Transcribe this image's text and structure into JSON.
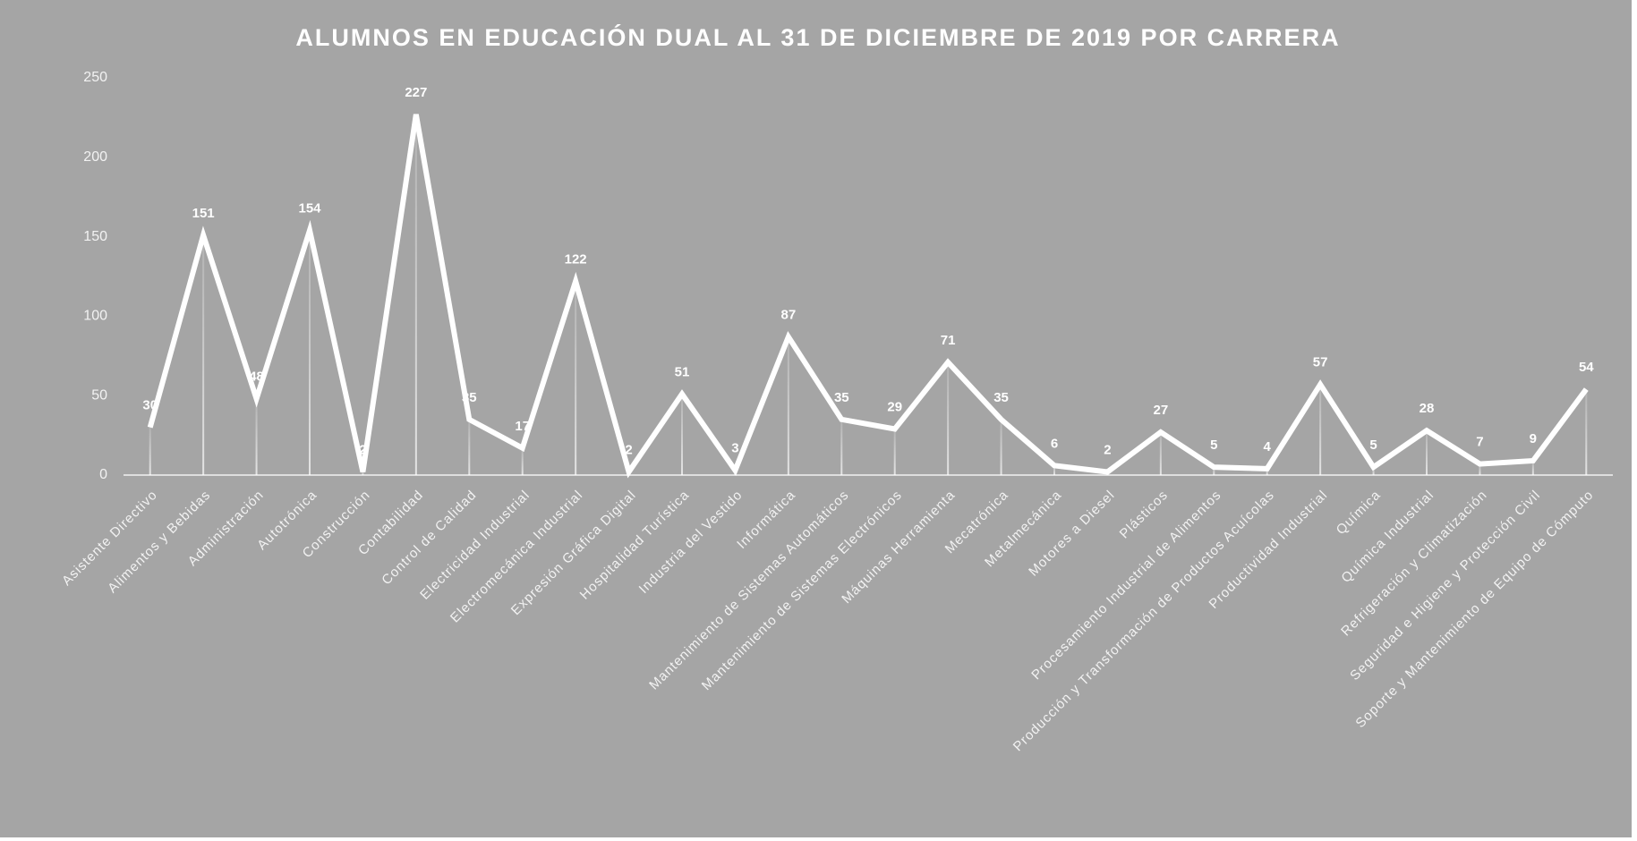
{
  "chart_data": {
    "type": "line",
    "title": "ALUMNOS EN EDUCACIÓN DUAL AL 31 DE DICIEMBRE DE 2019 POR CARRERA",
    "categories": [
      "Asistente Directivo",
      "Alimentos y Bebidas",
      "Administración",
      "Autotrónica",
      "Construcción",
      "Contabilidad",
      "Control de Calidad",
      "Electricidad Industrial",
      "Electromecánica Industrial",
      "Expresión Gráfica Digital",
      "Hospitalidad Turística",
      "Industria del Vestido",
      "Informática",
      "Mantenimiento de Sistemas Automáticos",
      "Mantenimiento de Sistemas Electrónicos",
      "Máquinas Herramienta",
      "Mecatrónica",
      "Metalmecánica",
      "Motores a Diesel",
      "Plásticos",
      "Procesamiento Industrial de Alimentos",
      "Producción y Transformación de Productos Acuícolas",
      "Productividad Industrial",
      "Química",
      "Química Industrial",
      "Refrigeración y Climatización",
      "Seguridad e Higiene y Protección Civil",
      "Soporte y Mantenimiento de Equipo de Cómputo"
    ],
    "values": [
      30,
      151,
      48,
      154,
      2,
      227,
      35,
      17,
      122,
      2,
      51,
      3,
      87,
      35,
      29,
      71,
      35,
      6,
      2,
      27,
      5,
      4,
      57,
      5,
      28,
      7,
      9,
      54
    ],
    "color": "#ffffff",
    "ylim": [
      0,
      250
    ],
    "yticks": [
      0,
      50,
      100,
      150,
      200,
      250
    ],
    "grid": false
  }
}
